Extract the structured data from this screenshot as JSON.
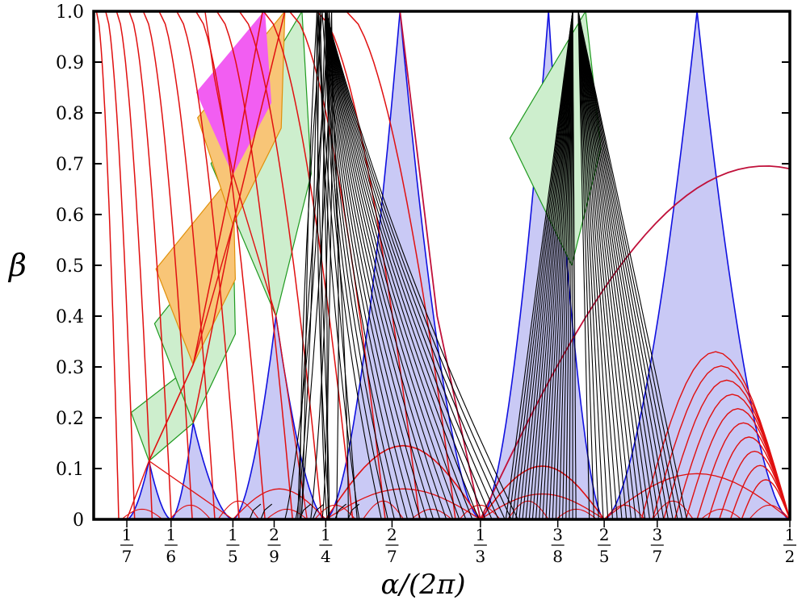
{
  "chart_data": {
    "type": "line",
    "xlabel": "α/(2π)",
    "ylabel": "β",
    "xlim": [
      0.125,
      0.5
    ],
    "ylim": [
      0,
      1.0
    ],
    "grid": false,
    "legend": "none",
    "y_ticks": [
      {
        "value": 0,
        "label": "0"
      },
      {
        "value": 0.1,
        "label": "0.1"
      },
      {
        "value": 0.2,
        "label": "0.2"
      },
      {
        "value": 0.3,
        "label": "0.3"
      },
      {
        "value": 0.4,
        "label": "0.4"
      },
      {
        "value": 0.5,
        "label": "0.5"
      },
      {
        "value": 0.6,
        "label": "0.6"
      },
      {
        "value": 0.7,
        "label": "0.7"
      },
      {
        "value": 0.8,
        "label": "0.8"
      },
      {
        "value": 0.9,
        "label": "0.9"
      },
      {
        "value": 1.0,
        "label": "1.0"
      }
    ],
    "x_ticks": [
      {
        "value": 0.142857,
        "num": "1",
        "den": "7"
      },
      {
        "value": 0.166667,
        "num": "1",
        "den": "6"
      },
      {
        "value": 0.2,
        "num": "1",
        "den": "5"
      },
      {
        "value": 0.222222,
        "num": "2",
        "den": "9"
      },
      {
        "value": 0.25,
        "num": "1",
        "den": "4"
      },
      {
        "value": 0.285714,
        "num": "2",
        "den": "7"
      },
      {
        "value": 0.333333,
        "num": "1",
        "den": "3"
      },
      {
        "value": 0.375,
        "num": "3",
        "den": "8"
      },
      {
        "value": 0.4,
        "num": "2",
        "den": "5"
      },
      {
        "value": 0.428571,
        "num": "3",
        "den": "7"
      },
      {
        "value": 0.5,
        "num": "1",
        "den": "2"
      }
    ],
    "colors": {
      "blue_region": "#c9c9f5",
      "blue_boundary": "#1010e0",
      "green_region": "#cdeecd",
      "green_boundary": "#1f9a1f",
      "orange_region": "#f8c577",
      "orange_boundary": "#e0900a",
      "magenta_region": "#f25ef2",
      "red_curve": "#e01010",
      "dark_red_curve": "#c0103a",
      "black_curve": "#000000"
    },
    "regions": [
      {
        "color": "blue",
        "x_left": 0.142857,
        "x_right": 0.166667,
        "apex": [
          0.1548,
          0.115
        ]
      },
      {
        "color": "blue",
        "x_left": 0.166667,
        "x_right": 0.2,
        "apex": [
          0.1786,
          0.19
        ]
      },
      {
        "color": "blue",
        "x_left": 0.2,
        "x_right": 0.25,
        "apex": [
          0.2232,
          0.4
        ]
      },
      {
        "color": "blue",
        "x_left": 0.25,
        "x_right": 0.333333,
        "apex": [
          0.29,
          1.0
        ]
      },
      {
        "color": "blue",
        "x_left": 0.333333,
        "x_right": 0.4,
        "apex": [
          0.37,
          1.0
        ]
      },
      {
        "color": "blue",
        "x_left": 0.4,
        "x_right": 0.5,
        "apex": [
          0.45,
          1.0
        ]
      },
      {
        "color": "green",
        "lower": [
          0.1548,
          0.115
        ],
        "upper": [
          0.1786,
          0.305
        ]
      },
      {
        "color": "green",
        "lower": [
          0.1786,
          0.19
        ],
        "upper": [
          0.2,
          0.58
        ]
      },
      {
        "color": "green",
        "lower": [
          0.2232,
          0.4
        ],
        "upper": [
          0.2372,
          1.0
        ]
      },
      {
        "color": "green",
        "lower": [
          0.3825,
          0.5
        ],
        "upper": [
          0.39,
          1.0
        ]
      },
      {
        "color": "orange",
        "lower": [
          0.1786,
          0.305
        ],
        "upper": [
          0.2,
          0.68
        ]
      },
      {
        "color": "orange",
        "lower": [
          0.2,
          0.58
        ],
        "upper": [
          0.228,
          1.0
        ]
      },
      {
        "color": "magenta",
        "lower": [
          0.2,
          0.68
        ],
        "upper": [
          0.217,
          1.0
        ]
      }
    ]
  }
}
